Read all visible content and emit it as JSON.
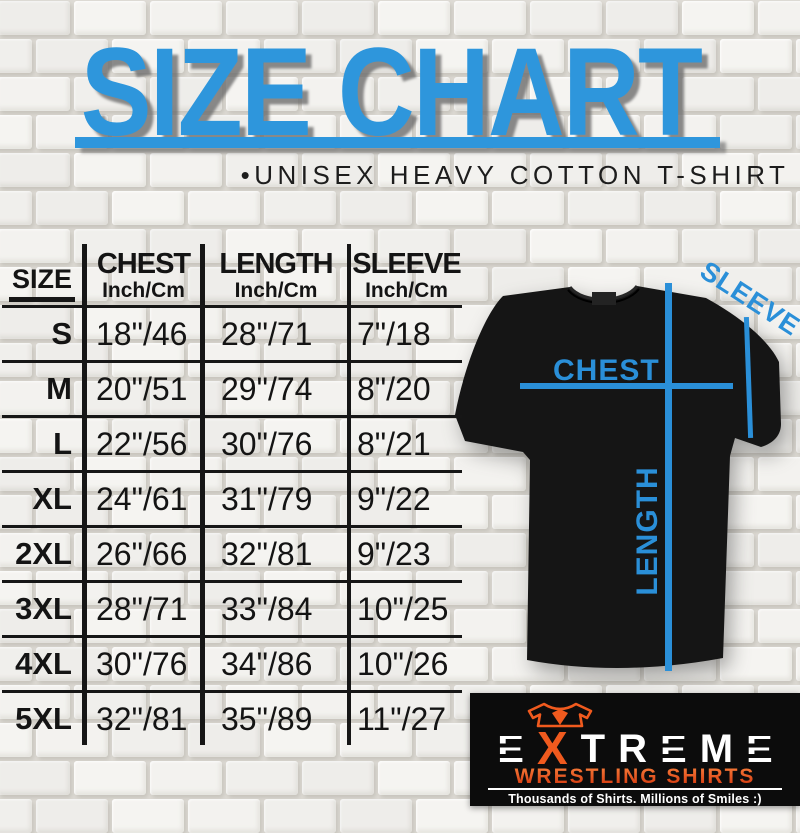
{
  "header": {
    "title": "SIZE CHART",
    "subtitle": "•UNISEX HEAVY COTTON T-SHIRT"
  },
  "table": {
    "size_header": "SIZE",
    "columns": [
      {
        "label": "CHEST",
        "unit": "Inch/Cm"
      },
      {
        "label": "LENGTH",
        "unit": "Inch/Cm"
      },
      {
        "label": "SLEEVE",
        "unit": "Inch/Cm"
      }
    ],
    "rows": [
      {
        "size": "S",
        "chest": "18\"/46",
        "length": "28\"/71",
        "sleeve": "7\"/18"
      },
      {
        "size": "M",
        "chest": "20\"/51",
        "length": "29\"/74",
        "sleeve": "8\"/20"
      },
      {
        "size": "L",
        "chest": "22\"/56",
        "length": "30\"/76",
        "sleeve": "8\"/21"
      },
      {
        "size": "XL",
        "chest": "24\"/61",
        "length": "31\"/79",
        "sleeve": "9\"/22"
      },
      {
        "size": "2XL",
        "chest": "26\"/66",
        "length": "32\"/81",
        "sleeve": "9\"/23"
      },
      {
        "size": "3XL",
        "chest": "28\"/71",
        "length": "33\"/84",
        "sleeve": "10\"/25"
      },
      {
        "size": "4XL",
        "chest": "30\"/76",
        "length": "34\"/86",
        "sleeve": "10\"/26"
      },
      {
        "size": "5XL",
        "chest": "32\"/81",
        "length": "35\"/89",
        "sleeve": "11\"/27"
      }
    ]
  },
  "diagram": {
    "chest_label": "CHEST",
    "length_label": "LENGTH",
    "sleeve_label": "SLEEVE"
  },
  "logo": {
    "letters": [
      "E",
      "X",
      "T",
      "R",
      "E",
      "M",
      "E"
    ],
    "line2": "WRESTLING SHIRTS",
    "tagline": "Thousands of Shirts. Millions of Smiles :)"
  },
  "colors": {
    "accent_blue": "#2e96dc",
    "measure_blue": "#2a8fd8",
    "logo_orange": "#f05a1e",
    "table_ink": "#161616"
  },
  "chart_data": {
    "type": "table",
    "title": "SIZE CHART",
    "subtitle": "UNISEX HEAVY COTTON T-SHIRT",
    "columns": [
      "SIZE",
      "CHEST Inch/Cm",
      "LENGTH Inch/Cm",
      "SLEEVE Inch/Cm"
    ],
    "rows": [
      [
        "S",
        "18\"/46",
        "28\"/71",
        "7\"/18"
      ],
      [
        "M",
        "20\"/51",
        "29\"/74",
        "8\"/20"
      ],
      [
        "L",
        "22\"/56",
        "30\"/76",
        "8\"/21"
      ],
      [
        "XL",
        "24\"/61",
        "31\"/79",
        "9\"/22"
      ],
      [
        "2XL",
        "26\"/66",
        "32\"/81",
        "9\"/23"
      ],
      [
        "3XL",
        "28\"/71",
        "33\"/84",
        "10\"/25"
      ],
      [
        "4XL",
        "30\"/76",
        "34\"/86",
        "10\"/26"
      ],
      [
        "5XL",
        "32\"/81",
        "35\"/89",
        "11\"/27"
      ]
    ]
  }
}
